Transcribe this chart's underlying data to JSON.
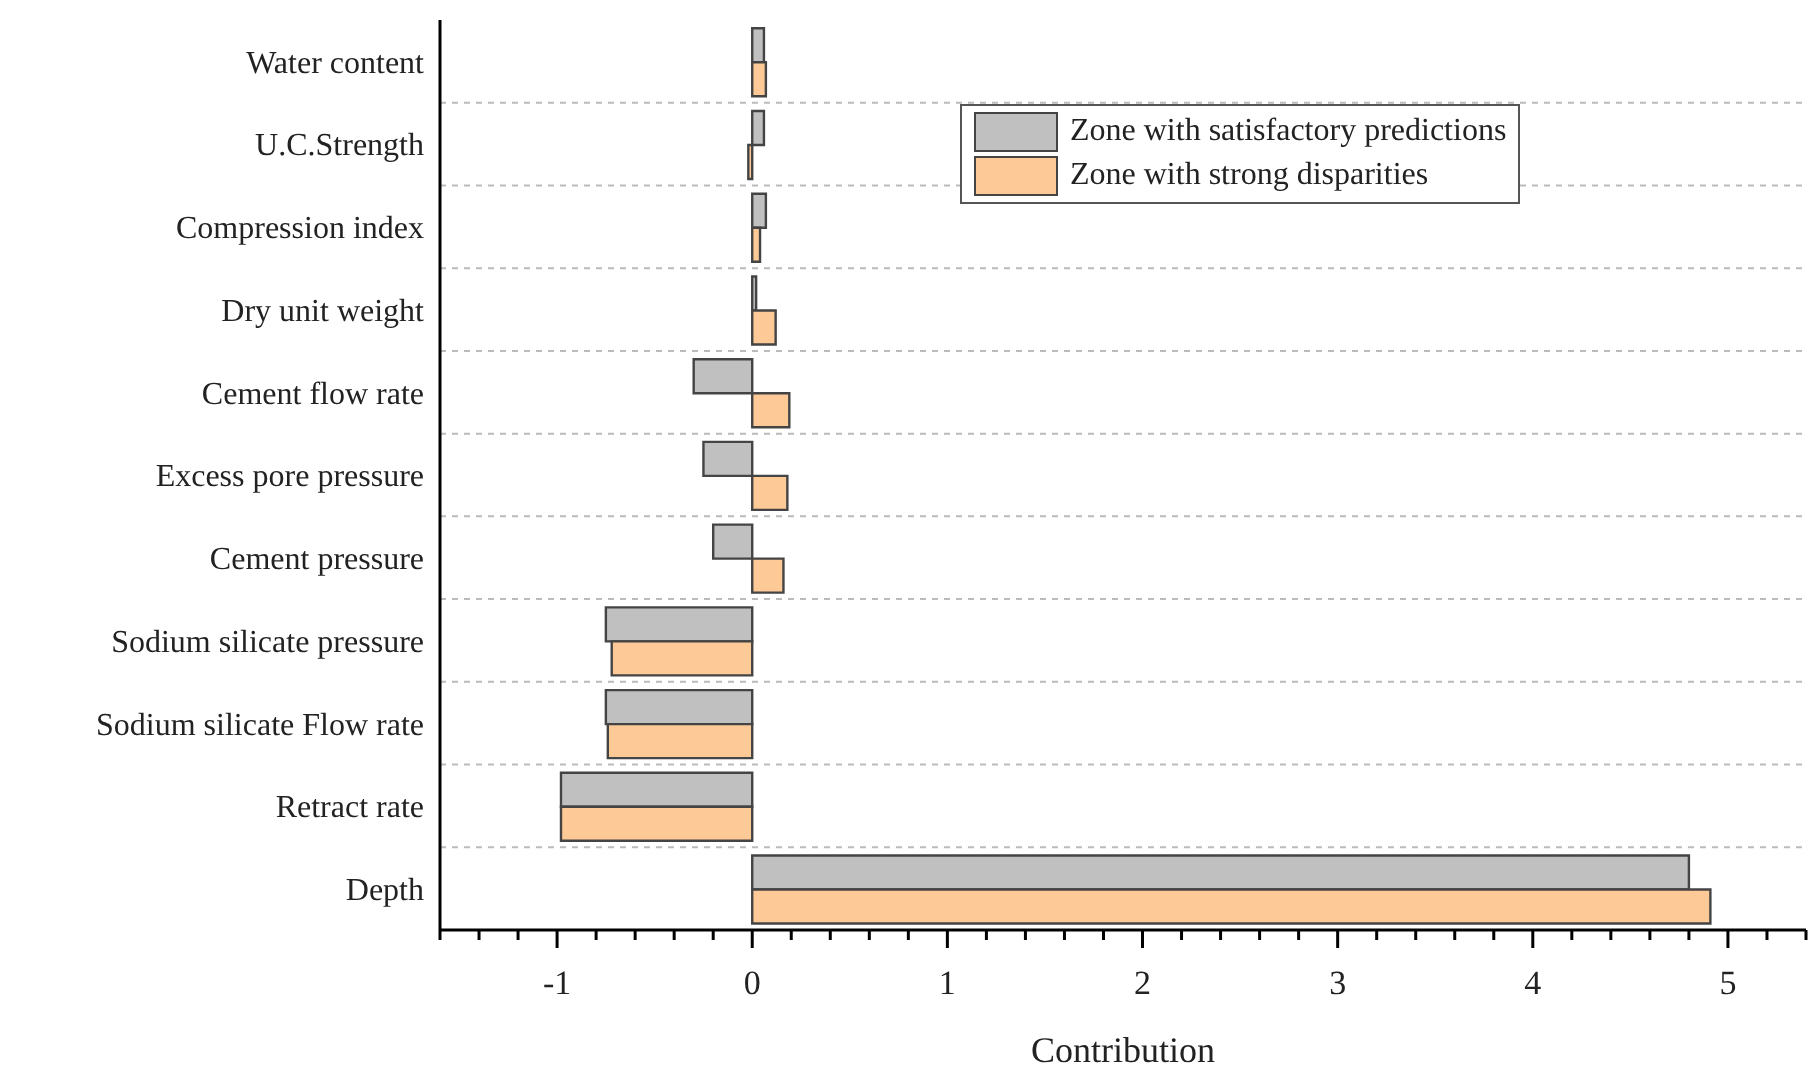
{
  "chart_data": {
    "type": "bar",
    "orientation": "horizontal",
    "xlabel": "Contribution",
    "categories": [
      "Water content",
      "U.C.Strength",
      "Compression index",
      "Dry unit weight",
      "Cement flow rate",
      "Excess pore pressure",
      "Cement pressure",
      "Sodium silicate pressure",
      "Sodium silicate Flow rate",
      "Retract rate",
      "Depth"
    ],
    "series": [
      {
        "name": "Zone with satisfactory predictions",
        "color": "#c0c0c0",
        "values": [
          0.06,
          0.06,
          0.07,
          0.02,
          -0.3,
          -0.25,
          -0.2,
          -0.75,
          -0.75,
          -0.98,
          4.8
        ]
      },
      {
        "name": "Zone with strong disparities",
        "color": "#fdc997",
        "values": [
          0.07,
          -0.02,
          0.04,
          0.12,
          0.19,
          0.18,
          0.16,
          -0.72,
          -0.74,
          -0.98,
          4.91
        ]
      }
    ],
    "xlim": [
      -1.6,
      5.4
    ],
    "xticks": [
      {
        "value": -1.6,
        "label": null
      },
      {
        "value": -1.4,
        "label": null
      },
      {
        "value": -1.2,
        "label": null
      },
      {
        "value": -1,
        "label": "-1"
      },
      {
        "value": -0.8,
        "label": null
      },
      {
        "value": -0.6,
        "label": null
      },
      {
        "value": -0.4,
        "label": null
      },
      {
        "value": -0.2,
        "label": null
      },
      0,
      {
        "value": 0.2,
        "label": null
      },
      {
        "value": 0.4,
        "label": null
      },
      {
        "value": 0.6,
        "label": null
      },
      {
        "value": 0.8,
        "label": null
      },
      1,
      {
        "value": 1.2,
        "label": null
      },
      {
        "value": 1.4,
        "label": null
      },
      {
        "value": 1.6,
        "label": null
      },
      {
        "value": 1.8,
        "label": null
      },
      2,
      {
        "value": 2.2,
        "label": null
      },
      {
        "value": 2.4,
        "label": null
      },
      {
        "value": 2.6,
        "label": null
      },
      {
        "value": 2.8,
        "label": null
      },
      3,
      {
        "value": 3.2,
        "label": null
      },
      {
        "value": 3.4,
        "label": null
      },
      {
        "value": 3.6,
        "label": null
      },
      {
        "value": 3.8,
        "label": null
      },
      4,
      {
        "value": 4.2,
        "label": null
      },
      {
        "value": 4.4,
        "label": null
      },
      {
        "value": 4.6,
        "label": null
      },
      {
        "value": 4.8,
        "label": null
      },
      5,
      {
        "value": 5.2,
        "label": null
      },
      {
        "value": 5.4,
        "label": null
      }
    ],
    "grid": "y",
    "legend": "top right"
  }
}
